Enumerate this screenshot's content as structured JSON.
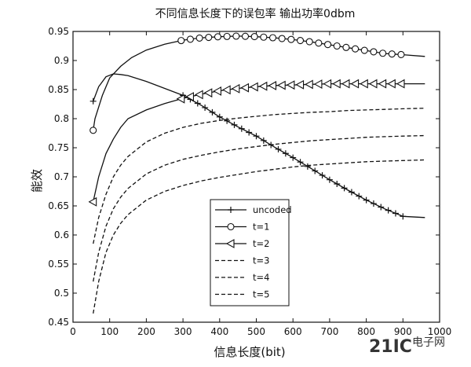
{
  "chart_data": {
    "type": "line",
    "title": "不同信息长度下的误包率 输出功率0dbm",
    "xlabel": "信息长度(bit)",
    "ylabel": "能效",
    "xlim": [
      0,
      1000
    ],
    "ylim": [
      0.45,
      0.95
    ],
    "xticks": [
      0,
      100,
      200,
      300,
      400,
      500,
      600,
      700,
      800,
      900,
      1000
    ],
    "yticks": [
      0.45,
      0.5,
      0.55,
      0.6,
      0.65,
      0.7,
      0.75,
      0.8,
      0.85,
      0.9,
      0.95
    ],
    "grid": false,
    "legend_position": "center",
    "series": [
      {
        "name": "uncoded",
        "style": "solid",
        "marker": "plus",
        "x": [
          55,
          70,
          90,
          110,
          130,
          150,
          200,
          250,
          300,
          350,
          400,
          450,
          500,
          550,
          600,
          650,
          700,
          750,
          800,
          850,
          900,
          960
        ],
        "y": [
          0.83,
          0.855,
          0.872,
          0.877,
          0.876,
          0.874,
          0.864,
          0.852,
          0.84,
          0.823,
          0.803,
          0.786,
          0.77,
          0.751,
          0.733,
          0.714,
          0.695,
          0.677,
          0.66,
          0.645,
          0.632,
          0.63
        ],
        "marker_x": [
          55,
          300,
          320,
          340,
          360,
          380,
          400,
          420,
          440,
          460,
          480,
          500,
          520,
          540,
          560,
          580,
          600,
          620,
          640,
          660,
          680,
          700,
          720,
          740,
          760,
          780,
          800,
          820,
          840,
          860,
          880,
          900
        ]
      },
      {
        "name": "t=1",
        "style": "solid",
        "marker": "circle",
        "x": [
          55,
          60,
          80,
          100,
          130,
          160,
          200,
          250,
          300,
          350,
          400,
          450,
          500,
          550,
          600,
          650,
          700,
          750,
          800,
          850,
          900,
          960
        ],
        "y": [
          0.78,
          0.8,
          0.84,
          0.87,
          0.89,
          0.905,
          0.918,
          0.928,
          0.935,
          0.939,
          0.941,
          0.942,
          0.941,
          0.939,
          0.936,
          0.932,
          0.927,
          0.922,
          0.917,
          0.912,
          0.91,
          0.907
        ],
        "marker_x": [
          55,
          295,
          320,
          345,
          370,
          395,
          420,
          445,
          470,
          495,
          520,
          545,
          570,
          595,
          620,
          645,
          670,
          695,
          720,
          745,
          770,
          795,
          820,
          845,
          870,
          895
        ]
      },
      {
        "name": "t=2",
        "style": "solid",
        "marker": "triangle-left",
        "x": [
          55,
          70,
          90,
          110,
          130,
          150,
          200,
          250,
          300,
          350,
          400,
          450,
          500,
          550,
          600,
          650,
          700,
          750,
          800,
          850,
          900,
          960
        ],
        "y": [
          0.657,
          0.7,
          0.74,
          0.765,
          0.785,
          0.8,
          0.815,
          0.826,
          0.835,
          0.842,
          0.848,
          0.852,
          0.855,
          0.857,
          0.858,
          0.859,
          0.86,
          0.86,
          0.86,
          0.86,
          0.86,
          0.86
        ],
        "marker_x": [
          55,
          295,
          320,
          345,
          370,
          395,
          420,
          445,
          470,
          495,
          520,
          545,
          570,
          595,
          620,
          645,
          670,
          695,
          720,
          745,
          770,
          795,
          820,
          845,
          870,
          895
        ]
      },
      {
        "name": "t=3",
        "style": "dashed",
        "marker": "none",
        "x": [
          55,
          70,
          90,
          110,
          130,
          150,
          200,
          250,
          300,
          350,
          400,
          450,
          500,
          550,
          600,
          650,
          700,
          750,
          800,
          850,
          900,
          960
        ],
        "y": [
          0.585,
          0.63,
          0.67,
          0.7,
          0.72,
          0.735,
          0.76,
          0.775,
          0.785,
          0.792,
          0.797,
          0.801,
          0.804,
          0.807,
          0.809,
          0.811,
          0.812,
          0.814,
          0.815,
          0.816,
          0.817,
          0.818
        ]
      },
      {
        "name": "t=4",
        "style": "dashed",
        "marker": "none",
        "x": [
          55,
          70,
          90,
          110,
          130,
          150,
          200,
          250,
          300,
          350,
          400,
          450,
          500,
          550,
          600,
          650,
          700,
          750,
          800,
          850,
          900,
          960
        ],
        "y": [
          0.52,
          0.57,
          0.615,
          0.645,
          0.665,
          0.68,
          0.705,
          0.72,
          0.73,
          0.737,
          0.743,
          0.748,
          0.752,
          0.756,
          0.759,
          0.762,
          0.764,
          0.766,
          0.768,
          0.769,
          0.77,
          0.771
        ]
      },
      {
        "name": "t=5",
        "style": "dashed",
        "marker": "none",
        "x": [
          55,
          70,
          90,
          110,
          130,
          150,
          200,
          250,
          300,
          350,
          400,
          450,
          500,
          550,
          600,
          650,
          700,
          750,
          800,
          850,
          900,
          960
        ],
        "y": [
          0.465,
          0.52,
          0.57,
          0.6,
          0.62,
          0.635,
          0.66,
          0.675,
          0.685,
          0.693,
          0.699,
          0.704,
          0.709,
          0.713,
          0.717,
          0.72,
          0.722,
          0.724,
          0.726,
          0.727,
          0.728,
          0.729
        ]
      }
    ]
  },
  "watermark": {
    "brand": "21IC",
    "text": "电子网",
    "color": "#e8a0a0"
  }
}
